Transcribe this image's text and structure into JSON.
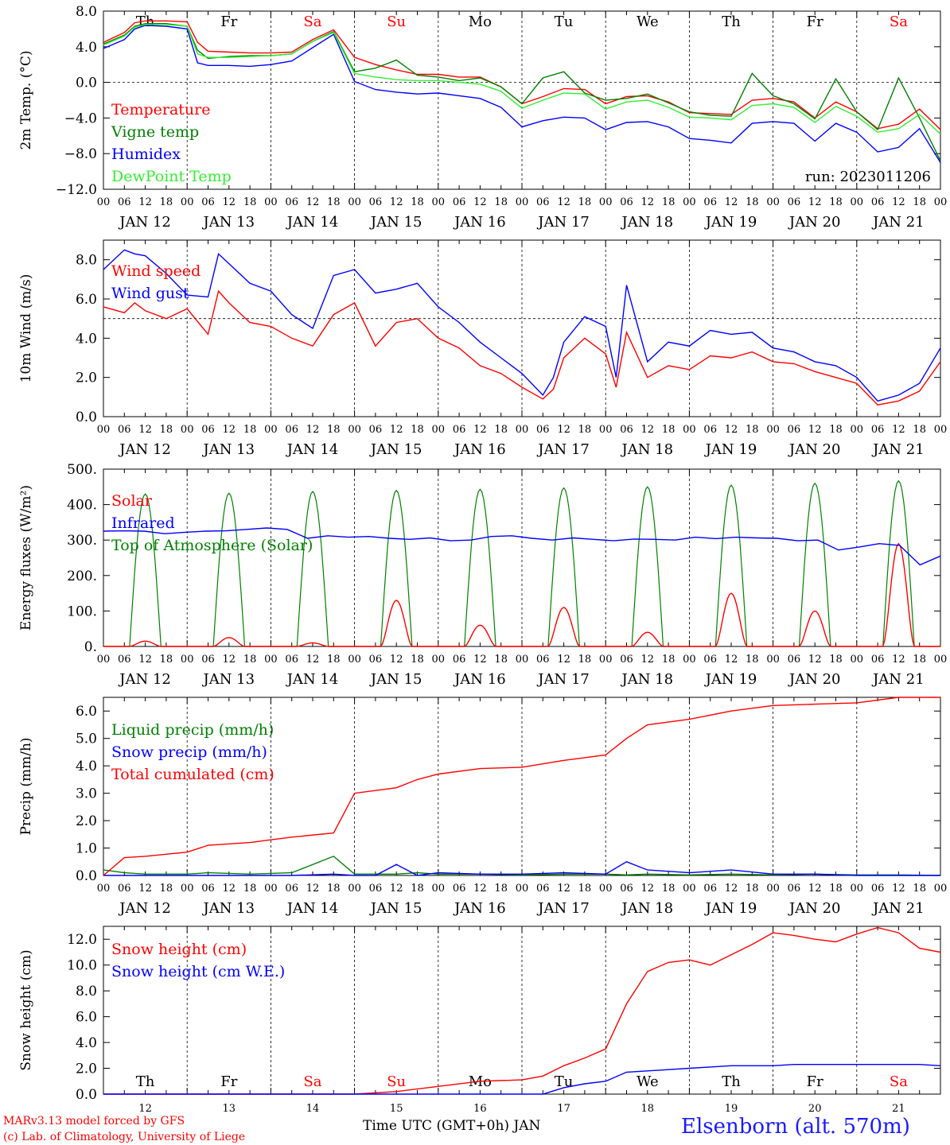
{
  "page": {
    "footer_left_1": "MARv3.13 model forced by GFS",
    "footer_left_2": "(c) Lab. of Climatology, University of Liege",
    "footer_title": "Elsenborn (alt. 570m)",
    "footer_axis": "Time UTC (GMT+0h) JAN"
  },
  "colors": {
    "red": "#ff0000",
    "green": "#008000",
    "blue": "#0000ff",
    "lightgreen": "#33ee33",
    "weekend": "#ff0000",
    "grid": "#000000"
  },
  "days": [
    "Th",
    "Fr",
    "Sa",
    "Su",
    "Mo",
    "Tu",
    "We",
    "Th",
    "Fr",
    "Sa"
  ],
  "weekend_days": [
    2,
    3,
    9
  ],
  "date_labels": [
    "JAN 12",
    "JAN 13",
    "JAN 14",
    "JAN 15",
    "JAN 16",
    "JAN 17",
    "JAN 18",
    "JAN 19",
    "JAN 20",
    "JAN 21"
  ],
  "hour_ticks": [
    "00",
    "06",
    "12",
    "18"
  ],
  "bottom_day_numbers": [
    "12",
    "13",
    "14",
    "15",
    "16",
    "17",
    "18",
    "19",
    "20",
    "21"
  ],
  "chart_data": [
    {
      "type": "line",
      "ylabel": "2m Temp. (°C)",
      "ylim": [
        -12,
        8
      ],
      "yticks": [
        8,
        4,
        0,
        -4,
        -8,
        -12
      ],
      "ytick_labels": [
        "8.0",
        "4.0",
        "0.0",
        "−4.0",
        "−8.0",
        "−12.0"
      ],
      "dashed_hline": 0,
      "annotation": "run: 2023011206",
      "show_days": true,
      "x": [
        0,
        6,
        9,
        12,
        18,
        24,
        27,
        30,
        36,
        42,
        48,
        54,
        60,
        66,
        72,
        78,
        84,
        90,
        96,
        102,
        108,
        114,
        120,
        126,
        132,
        138,
        144,
        150,
        156,
        162,
        168,
        174,
        180,
        186,
        192,
        198,
        204,
        210,
        216,
        222,
        228,
        234,
        240
      ],
      "series": [
        {
          "name": "Temperature",
          "color": "red",
          "values": [
            4.5,
            5.6,
            6.7,
            6.9,
            6.9,
            6.8,
            4.5,
            3.5,
            3.4,
            3.3,
            3.3,
            3.4,
            4.8,
            5.9,
            2.8,
            2.0,
            1.4,
            0.9,
            0.9,
            0.6,
            0.6,
            -0.5,
            -2.4,
            -1.6,
            -0.7,
            -0.8,
            -2.4,
            -1.6,
            -1.5,
            -2.2,
            -3.4,
            -3.5,
            -3.6,
            -2.0,
            -1.8,
            -2.2,
            -4.0,
            -2.2,
            -3.3,
            -5.2,
            -4.7,
            -3.0,
            -5.3
          ]
        },
        {
          "name": "Vigne temp",
          "color": "green",
          "values": [
            4.3,
            5.3,
            6.3,
            6.6,
            6.6,
            6.3,
            3.6,
            2.7,
            2.9,
            3.0,
            3.0,
            3.2,
            4.6,
            5.7,
            1.2,
            1.6,
            2.5,
            0.8,
            0.6,
            0.2,
            0.5,
            -0.5,
            -2.4,
            0.5,
            1.2,
            -1.2,
            -2.0,
            -1.8,
            -1.3,
            -2.3,
            -3.3,
            -3.7,
            -3.8,
            1.0,
            -1.5,
            -2.4,
            -4.1,
            0.4,
            -3.3,
            -5.3,
            0.5,
            -4.0,
            -8.8
          ]
        },
        {
          "name": "Humidex",
          "color": "blue",
          "values": [
            3.8,
            4.8,
            6.0,
            6.4,
            6.3,
            6.0,
            2.2,
            1.9,
            1.9,
            1.8,
            2.0,
            2.4,
            3.9,
            5.4,
            0.1,
            -0.8,
            -1.1,
            -1.3,
            -1.2,
            -1.5,
            -1.8,
            -2.8,
            -5.0,
            -4.3,
            -3.9,
            -4.0,
            -5.3,
            -4.5,
            -4.4,
            -5.0,
            -6.3,
            -6.5,
            -6.8,
            -4.6,
            -4.4,
            -4.6,
            -6.6,
            -4.6,
            -5.6,
            -7.8,
            -7.3,
            -5.2,
            -9.0
          ]
        },
        {
          "name": "DewPoint Temp",
          "color": "lightgreen",
          "values": [
            4.2,
            5.2,
            6.2,
            6.5,
            6.5,
            6.3,
            3.2,
            2.8,
            2.8,
            2.9,
            3.0,
            3.2,
            4.6,
            5.6,
            1.0,
            0.6,
            0.3,
            0.2,
            0.2,
            0.0,
            -0.2,
            -1.0,
            -2.9,
            -2.0,
            -1.2,
            -1.3,
            -3.0,
            -2.2,
            -2.0,
            -2.8,
            -3.9,
            -4.0,
            -4.2,
            -2.6,
            -2.4,
            -2.8,
            -4.5,
            -2.7,
            -3.8,
            -5.6,
            -5.2,
            -3.6,
            -5.8
          ]
        }
      ]
    },
    {
      "type": "line",
      "ylabel": "10m Wind (m/s)",
      "ylim": [
        0,
        9
      ],
      "yticks": [
        0,
        2,
        4,
        6,
        8
      ],
      "ytick_labels": [
        "0.0",
        "2.0",
        "4.0",
        "6.0",
        "8.0"
      ],
      "dashed_hline": 5,
      "show_days": false,
      "x": [
        0,
        6,
        9,
        12,
        18,
        24,
        30,
        33,
        36,
        42,
        48,
        54,
        60,
        66,
        72,
        78,
        84,
        90,
        96,
        102,
        108,
        114,
        120,
        126,
        129,
        132,
        138,
        144,
        147,
        150,
        156,
        162,
        168,
        174,
        180,
        186,
        192,
        198,
        204,
        210,
        216,
        222,
        228,
        234,
        240
      ],
      "series": [
        {
          "name": "Wind speed",
          "color": "red",
          "values": [
            5.6,
            5.3,
            5.8,
            5.4,
            5.0,
            5.5,
            4.2,
            6.4,
            5.8,
            4.8,
            4.6,
            4.0,
            3.6,
            5.2,
            5.8,
            3.6,
            4.8,
            5.0,
            4.0,
            3.5,
            2.6,
            2.2,
            1.5,
            0.9,
            1.4,
            3.0,
            4.0,
            3.2,
            1.5,
            4.3,
            2.0,
            2.6,
            2.4,
            3.1,
            3.0,
            3.3,
            2.8,
            2.7,
            2.3,
            2.0,
            1.7,
            0.6,
            0.8,
            1.3,
            2.8
          ]
        },
        {
          "name": "Wind gust",
          "color": "blue",
          "values": [
            7.5,
            8.5,
            8.3,
            8.2,
            7.3,
            6.2,
            6.1,
            8.3,
            7.8,
            6.8,
            6.4,
            5.2,
            4.5,
            7.2,
            7.5,
            6.3,
            6.5,
            6.8,
            5.6,
            4.8,
            3.8,
            3.0,
            2.2,
            1.1,
            2.0,
            3.8,
            5.1,
            4.6,
            2.0,
            6.7,
            2.8,
            3.8,
            3.6,
            4.4,
            4.2,
            4.3,
            3.5,
            3.3,
            2.8,
            2.6,
            2.0,
            0.8,
            1.1,
            1.7,
            3.5
          ]
        }
      ]
    },
    {
      "type": "line",
      "ylabel": "Energy fluxes (W/m²)",
      "ylim": [
        0,
        500
      ],
      "yticks": [
        0,
        100,
        200,
        300,
        400,
        500
      ],
      "ytick_labels": [
        "0.",
        "100.",
        "200.",
        "300.",
        "400.",
        "500."
      ],
      "show_days": false,
      "solar_peaks": [
        15,
        25,
        10,
        130,
        60,
        110,
        40,
        150,
        100,
        290
      ],
      "toa_peaks": [
        430,
        432,
        437,
        440,
        443,
        447,
        450,
        455,
        460,
        467
      ],
      "infrared": [
        325,
        326,
        325,
        318,
        322,
        325,
        326,
        330,
        334,
        330,
        305,
        312,
        308,
        310,
        305,
        302,
        306,
        298,
        300,
        310,
        312,
        305,
        300,
        306,
        302,
        298,
        303,
        302,
        300,
        308,
        304,
        308,
        306,
        305,
        298,
        300,
        272,
        280,
        290,
        285,
        230,
        255
      ],
      "series": [
        {
          "name": "Solar",
          "color": "red"
        },
        {
          "name": "Infrared",
          "color": "blue"
        },
        {
          "name": "Top of Atmosphere (Solar)",
          "color": "green"
        }
      ]
    },
    {
      "type": "line",
      "ylabel": "Precip (mm/h)",
      "ylim": [
        0,
        6.5
      ],
      "yticks": [
        0,
        1,
        2,
        3,
        4,
        5,
        6
      ],
      "ytick_labels": [
        "0.0",
        "1.0",
        "2.0",
        "3.0",
        "4.0",
        "5.0",
        "6.0"
      ],
      "show_days": false,
      "x": [
        0,
        6,
        12,
        24,
        30,
        42,
        54,
        66,
        72,
        78,
        84,
        90,
        96,
        108,
        120,
        132,
        144,
        150,
        156,
        168,
        180,
        192,
        204,
        216,
        228,
        240
      ],
      "series": [
        {
          "name": "Liquid precip (mm/h)",
          "color": "green",
          "values": [
            0.2,
            0.1,
            0.05,
            0.05,
            0.1,
            0.05,
            0.1,
            0.7,
            0.05,
            0.05,
            0.05,
            0.1,
            0.05,
            0.05,
            0.02,
            0.05,
            0.05,
            0.02,
            0.05,
            0.02,
            0.05,
            0.02,
            0.05,
            0.02,
            0.02,
            0.0
          ]
        },
        {
          "name": "Snow precip (mm/h)",
          "color": "blue",
          "values": [
            0.0,
            0.0,
            0.0,
            0.0,
            0.0,
            0.0,
            0.0,
            0.05,
            0.0,
            0.0,
            0.4,
            0.0,
            0.1,
            0.05,
            0.05,
            0.1,
            0.05,
            0.5,
            0.2,
            0.1,
            0.2,
            0.05,
            0.05,
            0.0,
            0.0,
            0.0
          ]
        },
        {
          "name": "Total cumulated (cm)",
          "color": "red",
          "values": [
            0.0,
            0.65,
            0.7,
            0.85,
            1.1,
            1.2,
            1.4,
            1.55,
            3.0,
            3.1,
            3.2,
            3.5,
            3.7,
            3.9,
            3.95,
            4.2,
            4.4,
            5.0,
            5.5,
            5.7,
            6.0,
            6.2,
            6.25,
            6.3,
            6.5,
            6.5
          ]
        }
      ]
    },
    {
      "type": "line",
      "ylabel": "Snow height (cm)",
      "ylim": [
        0,
        13
      ],
      "yticks": [
        0,
        2,
        4,
        6,
        8,
        10,
        12
      ],
      "ytick_labels": [
        "0.0",
        "2.0",
        "4.0",
        "6.0",
        "8.0",
        "10.0",
        "12.0"
      ],
      "show_days_bottom": true,
      "x": [
        0,
        24,
        48,
        72,
        84,
        96,
        108,
        120,
        126,
        132,
        138,
        144,
        150,
        156,
        162,
        168,
        174,
        180,
        186,
        192,
        198,
        204,
        210,
        216,
        222,
        228,
        234,
        240
      ],
      "series": [
        {
          "name": "Snow height (cm)",
          "color": "red",
          "values": [
            0,
            0,
            0,
            0,
            0.2,
            0.6,
            1.0,
            1.1,
            1.4,
            2.2,
            2.8,
            3.5,
            7.0,
            9.5,
            10.2,
            10.4,
            10.0,
            10.8,
            11.6,
            12.5,
            12.3,
            12.0,
            11.8,
            12.4,
            12.9,
            12.5,
            11.3,
            11.0
          ]
        },
        {
          "name": "Snow height (cm W.E.)",
          "color": "blue",
          "values": [
            0,
            0,
            0,
            0,
            0,
            0,
            0,
            0,
            0,
            0.5,
            0.8,
            1.0,
            1.7,
            1.8,
            1.9,
            2.0,
            2.1,
            2.2,
            2.2,
            2.2,
            2.3,
            2.3,
            2.3,
            2.3,
            2.3,
            2.3,
            2.3,
            2.2
          ]
        }
      ]
    }
  ]
}
